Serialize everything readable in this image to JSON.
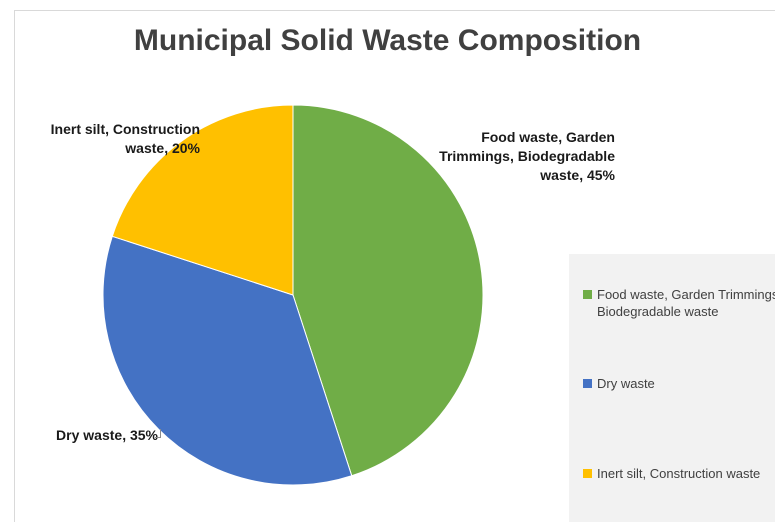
{
  "chart_data": {
    "type": "pie",
    "title": "Municipal Solid Waste Composition",
    "slices": [
      {
        "label": "Food waste, Garden Trimmings, Biodegradable waste",
        "value": 45,
        "color": "#70ad47",
        "data_label": "Food waste, Garden Trimmings, Biodegradable waste, 45%"
      },
      {
        "label": "Dry waste",
        "value": 35,
        "color": "#4472c4",
        "data_label": "Dry waste, 35%"
      },
      {
        "label": "Inert silt, Construction waste",
        "value": 20,
        "color": "#ffc000",
        "data_label": "Inert silt, Construction waste, 20%"
      }
    ],
    "legend": {
      "placement": "right",
      "entries": [
        {
          "line1": "Food waste, Garden Trimmings,",
          "line2": "Biodegradable waste"
        },
        {
          "line1": "Dry waste",
          "line2": ""
        },
        {
          "line1": "Inert silt, Construction waste",
          "line2": ""
        }
      ]
    }
  }
}
